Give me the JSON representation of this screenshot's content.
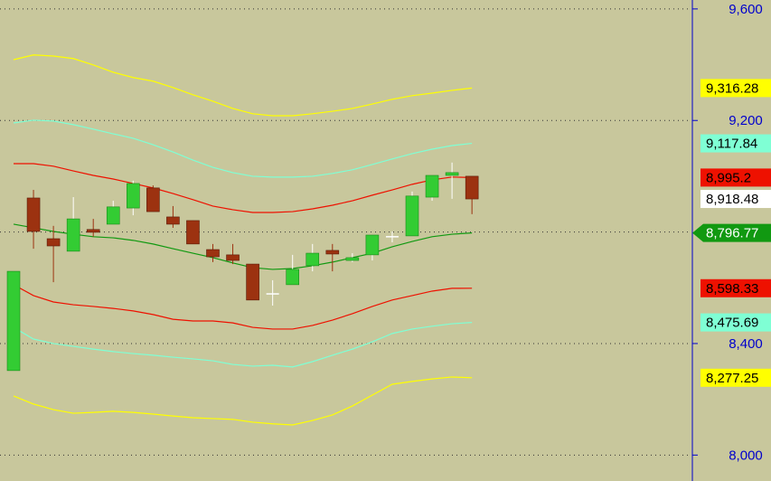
{
  "chart_data": {
    "type": "candlestick",
    "ylim": [
      7907,
      9632
    ],
    "yticks": [
      {
        "value": 8000,
        "label": "8,000"
      },
      {
        "value": 8400,
        "label": "8,400"
      },
      {
        "value": 9200,
        "label": "9,200"
      },
      {
        "value": 9600,
        "label": "9,600"
      }
    ],
    "extra_grid": [
      8800
    ],
    "grid": true,
    "candles": {
      "open": [
        8303,
        8922,
        8776,
        8731,
        8809,
        8828,
        8886,
        8958,
        8854,
        8841,
        8737,
        8718,
        8685,
        8578,
        8611,
        8679,
        8734,
        8698,
        8718,
        8783,
        8786,
        8925,
        9003,
        9000
      ],
      "high": [
        8659,
        8951,
        8822,
        8925,
        8847,
        8912,
        8984,
        8967,
        8893,
        8841,
        8757,
        8757,
        8685,
        8627,
        8718,
        8757,
        8757,
        8724,
        8789,
        8802,
        8945,
        9003,
        9049,
        9000
      ],
      "low": [
        8303,
        8740,
        8620,
        8731,
        8783,
        8828,
        8860,
        8873,
        8815,
        8757,
        8692,
        8685,
        8556,
        8536,
        8611,
        8659,
        8659,
        8692,
        8698,
        8763,
        8786,
        8912,
        8919,
        8864
      ],
      "close": [
        8659,
        8802,
        8750,
        8847,
        8799,
        8890,
        8974,
        8873,
        8828,
        8757,
        8711,
        8698,
        8556,
        8578,
        8666,
        8724,
        8721,
        8708,
        8789,
        8783,
        8929,
        9003,
        9013,
        8918.48
      ],
      "up_color": "#33cc33",
      "down_color": "#9c3210",
      "doji_color": "#ffffff"
    },
    "series": [
      {
        "color": "#ffff00",
        "values": [
          9418,
          9435,
          9431,
          9422,
          9399,
          9373,
          9354,
          9341,
          9318,
          9292,
          9269,
          9243,
          9224,
          9217,
          9217,
          9224,
          9233,
          9243,
          9259,
          9276,
          9289,
          9298,
          9308,
          9316.28
        ]
      },
      {
        "color": "#7fffd4",
        "values": [
          9191,
          9201,
          9198,
          9185,
          9169,
          9152,
          9136,
          9113,
          9087,
          9058,
          9032,
          9013,
          9000,
          8997,
          8997,
          9000,
          9010,
          9023,
          9042,
          9062,
          9081,
          9097,
          9110,
          9117.84
        ]
      },
      {
        "color": "#ee1100",
        "values": [
          9045,
          9045,
          9036,
          9019,
          9003,
          8990,
          8974,
          8958,
          8938,
          8916,
          8893,
          8880,
          8870,
          8870,
          8873,
          8883,
          8896,
          8912,
          8932,
          8951,
          8971,
          8987,
          8997,
          8995.2
        ]
      },
      {
        "color": "#119911",
        "values": [
          8828,
          8815,
          8802,
          8792,
          8783,
          8779,
          8770,
          8757,
          8740,
          8724,
          8708,
          8689,
          8672,
          8666,
          8669,
          8679,
          8692,
          8708,
          8724,
          8747,
          8766,
          8783,
          8792,
          8796.77
        ]
      },
      {
        "color": "#ee1100",
        "values": [
          8611,
          8572,
          8549,
          8539,
          8533,
          8526,
          8517,
          8504,
          8487,
          8481,
          8481,
          8474,
          8458,
          8452,
          8452,
          8465,
          8484,
          8507,
          8533,
          8556,
          8572,
          8588,
          8598,
          8598.33
        ]
      },
      {
        "color": "#7fffd4",
        "values": [
          8458,
          8416,
          8400,
          8390,
          8380,
          8371,
          8364,
          8358,
          8351,
          8345,
          8338,
          8325,
          8319,
          8322,
          8316,
          8335,
          8358,
          8380,
          8406,
          8436,
          8452,
          8462,
          8471,
          8475.69
        ]
      },
      {
        "color": "#ffff00",
        "values": [
          8212,
          8183,
          8163,
          8150,
          8153,
          8157,
          8153,
          8147,
          8140,
          8134,
          8131,
          8128,
          8118,
          8112,
          8108,
          8124,
          8144,
          8176,
          8215,
          8254,
          8264,
          8273,
          8280,
          8277.25
        ]
      }
    ],
    "price_tags": [
      {
        "value": 9316.28,
        "label": "9,316.28",
        "color": "#ffff00",
        "text_color": "#000000"
      },
      {
        "value": 9117.84,
        "label": "9,117.84",
        "color": "#7fffd4",
        "text_color": "#000000"
      },
      {
        "value": 8995.2,
        "label": "8,995.2",
        "color": "#ee1100",
        "text_color": "#000000"
      },
      {
        "value": 8918.48,
        "label": "8,918.48",
        "color": "#ffffff",
        "text_color": "#000000"
      },
      {
        "value": 8796.77,
        "label": "8,796.77",
        "color": "#119911",
        "text_color": "#ffffff",
        "arrow": true
      },
      {
        "value": 8598.33,
        "label": "8,598.33",
        "color": "#ee1100",
        "text_color": "#000000"
      },
      {
        "value": 8475.69,
        "label": "8,475.69",
        "color": "#7fffd4",
        "text_color": "#000000"
      },
      {
        "value": 8277.25,
        "label": "8,277.25",
        "color": "#ffff00",
        "text_color": "#000000"
      }
    ],
    "axis_color": "#0000cc"
  }
}
